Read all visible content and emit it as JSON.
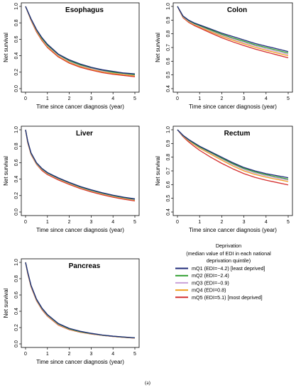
{
  "chart_data": [
    {
      "type": "line",
      "title": "Esophagus",
      "xlabel": "Time since cancer diagnosis (year)",
      "ylabel": "Net survival",
      "xlim": [
        0,
        5
      ],
      "ylim": [
        0,
        1
      ],
      "xticks": [
        "0",
        "1",
        "2",
        "3",
        "4",
        "5"
      ],
      "yticks": [
        "0.0",
        "0.2",
        "0.4",
        "0.6",
        "0.8",
        "1.0"
      ],
      "x": [
        0,
        0.25,
        0.5,
        0.75,
        1,
        1.5,
        2,
        2.5,
        3,
        3.5,
        4,
        4.5,
        5
      ],
      "series": [
        {
          "color": "#1f2a78",
          "values": [
            1.0,
            0.85,
            0.72,
            0.62,
            0.54,
            0.42,
            0.35,
            0.3,
            0.26,
            0.23,
            0.21,
            0.19,
            0.18
          ]
        },
        {
          "color": "#2e9e2e",
          "values": [
            1.0,
            0.845,
            0.715,
            0.61,
            0.53,
            0.415,
            0.34,
            0.29,
            0.255,
            0.225,
            0.2,
            0.185,
            0.17
          ]
        },
        {
          "color": "#c9a0d8",
          "values": [
            1.0,
            0.84,
            0.71,
            0.605,
            0.52,
            0.405,
            0.33,
            0.28,
            0.245,
            0.215,
            0.195,
            0.18,
            0.165
          ]
        },
        {
          "color": "#f0a020",
          "values": [
            1.0,
            0.835,
            0.7,
            0.595,
            0.51,
            0.395,
            0.32,
            0.27,
            0.235,
            0.205,
            0.185,
            0.17,
            0.155
          ]
        },
        {
          "color": "#d42f2f",
          "values": [
            1.0,
            0.83,
            0.69,
            0.585,
            0.5,
            0.385,
            0.31,
            0.26,
            0.225,
            0.195,
            0.175,
            0.16,
            0.145
          ]
        }
      ]
    },
    {
      "type": "line",
      "title": "Colon",
      "xlabel": "Time since cancer diagnosis (year)",
      "ylabel": "Net survival",
      "xlim": [
        0,
        5
      ],
      "ylim": [
        0.4,
        1
      ],
      "xticks": [
        "0",
        "1",
        "2",
        "3",
        "4",
        "5"
      ],
      "yticks": [
        "0.4",
        "0.5",
        "0.6",
        "0.7",
        "0.8",
        "0.9",
        "1.0"
      ],
      "x": [
        0,
        0.25,
        0.5,
        0.75,
        1,
        1.5,
        2,
        2.5,
        3,
        3.5,
        4,
        4.5,
        5
      ],
      "series": [
        {
          "color": "#1f2a78",
          "values": [
            1.0,
            0.93,
            0.9,
            0.88,
            0.865,
            0.835,
            0.805,
            0.78,
            0.755,
            0.73,
            0.71,
            0.69,
            0.67
          ]
        },
        {
          "color": "#2e9e2e",
          "values": [
            1.0,
            0.928,
            0.897,
            0.876,
            0.86,
            0.828,
            0.797,
            0.77,
            0.745,
            0.72,
            0.7,
            0.68,
            0.66
          ]
        },
        {
          "color": "#c9a0d8",
          "values": [
            1.0,
            0.925,
            0.893,
            0.872,
            0.855,
            0.822,
            0.79,
            0.762,
            0.736,
            0.712,
            0.69,
            0.67,
            0.65
          ]
        },
        {
          "color": "#f0a020",
          "values": [
            1.0,
            0.922,
            0.889,
            0.867,
            0.85,
            0.815,
            0.782,
            0.753,
            0.727,
            0.702,
            0.68,
            0.66,
            0.64
          ]
        },
        {
          "color": "#d42f2f",
          "values": [
            1.0,
            0.918,
            0.884,
            0.861,
            0.843,
            0.806,
            0.771,
            0.741,
            0.714,
            0.689,
            0.667,
            0.646,
            0.625
          ]
        }
      ]
    },
    {
      "type": "line",
      "title": "Liver",
      "xlabel": "Time since cancer diagnosis (year)",
      "ylabel": "Net survival",
      "xlim": [
        0,
        5
      ],
      "ylim": [
        0,
        1
      ],
      "xticks": [
        "0",
        "1",
        "2",
        "3",
        "4",
        "5"
      ],
      "yticks": [
        "0.0",
        "0.2",
        "0.4",
        "0.6",
        "0.8",
        "1.0"
      ],
      "x": [
        0,
        0.1,
        0.25,
        0.5,
        0.75,
        1,
        1.5,
        2,
        2.5,
        3,
        3.5,
        4,
        4.5,
        5
      ],
      "series": [
        {
          "color": "#1f2a78",
          "values": [
            1.0,
            0.86,
            0.72,
            0.6,
            0.53,
            0.48,
            0.415,
            0.36,
            0.31,
            0.27,
            0.235,
            0.205,
            0.18,
            0.16
          ]
        },
        {
          "color": "#2e9e2e",
          "values": [
            1.0,
            0.855,
            0.715,
            0.595,
            0.525,
            0.475,
            0.41,
            0.355,
            0.305,
            0.265,
            0.23,
            0.2,
            0.175,
            0.155
          ]
        },
        {
          "color": "#c9a0d8",
          "values": [
            1.0,
            0.85,
            0.71,
            0.59,
            0.52,
            0.47,
            0.405,
            0.35,
            0.3,
            0.26,
            0.225,
            0.195,
            0.17,
            0.15
          ]
        },
        {
          "color": "#f0a020",
          "values": [
            1.0,
            0.845,
            0.705,
            0.585,
            0.515,
            0.465,
            0.4,
            0.345,
            0.295,
            0.255,
            0.22,
            0.19,
            0.165,
            0.145
          ]
        },
        {
          "color": "#d42f2f",
          "values": [
            1.0,
            0.84,
            0.7,
            0.58,
            0.505,
            0.455,
            0.39,
            0.335,
            0.285,
            0.245,
            0.21,
            0.18,
            0.155,
            0.135
          ]
        }
      ]
    },
    {
      "type": "line",
      "title": "Rectum",
      "xlabel": "Time since cancer diagnosis (year)",
      "ylabel": "Net survival",
      "xlim": [
        0,
        5
      ],
      "ylim": [
        0.4,
        1
      ],
      "xticks": [
        "0",
        "1",
        "2",
        "3",
        "4",
        "5"
      ],
      "yticks": [
        "0.4",
        "0.5",
        "0.6",
        "0.7",
        "0.8",
        "0.9",
        "1.0"
      ],
      "x": [
        0,
        0.25,
        0.5,
        0.75,
        1,
        1.5,
        2,
        2.5,
        3,
        3.5,
        4,
        4.5,
        5
      ],
      "series": [
        {
          "color": "#1f2a78",
          "values": [
            1.0,
            0.96,
            0.93,
            0.905,
            0.88,
            0.84,
            0.8,
            0.76,
            0.725,
            0.7,
            0.68,
            0.665,
            0.65
          ]
        },
        {
          "color": "#2e9e2e",
          "values": [
            1.0,
            0.958,
            0.927,
            0.9,
            0.875,
            0.835,
            0.793,
            0.753,
            0.718,
            0.692,
            0.672,
            0.656,
            0.64
          ]
        },
        {
          "color": "#c9a0d8",
          "values": [
            1.0,
            0.956,
            0.924,
            0.897,
            0.872,
            0.83,
            0.787,
            0.746,
            0.71,
            0.684,
            0.664,
            0.648,
            0.632
          ]
        },
        {
          "color": "#f0a020",
          "values": [
            1.0,
            0.954,
            0.92,
            0.892,
            0.866,
            0.822,
            0.778,
            0.736,
            0.7,
            0.674,
            0.654,
            0.638,
            0.622
          ]
        },
        {
          "color": "#d42f2f",
          "values": [
            1.0,
            0.95,
            0.912,
            0.88,
            0.85,
            0.8,
            0.755,
            0.715,
            0.68,
            0.653,
            0.632,
            0.615,
            0.598
          ]
        }
      ]
    },
    {
      "type": "line",
      "title": "Pancreas",
      "xlabel": "Time since cancer diagnosis (year)",
      "ylabel": "Net survival",
      "xlim": [
        0,
        5
      ],
      "ylim": [
        0,
        1
      ],
      "xticks": [
        "0",
        "1",
        "2",
        "3",
        "4",
        "5"
      ],
      "yticks": [
        "0.0",
        "0.2",
        "0.4",
        "0.6",
        "0.8",
        "1.0"
      ],
      "x": [
        0,
        0.1,
        0.25,
        0.5,
        0.75,
        1,
        1.5,
        2,
        2.5,
        3,
        3.5,
        4,
        4.5,
        5
      ],
      "series": [
        {
          "color": "#1f2a78",
          "values": [
            1.0,
            0.88,
            0.72,
            0.55,
            0.44,
            0.36,
            0.25,
            0.19,
            0.155,
            0.13,
            0.11,
            0.095,
            0.085,
            0.075
          ]
        },
        {
          "color": "#2e9e2e",
          "values": [
            1.0,
            0.875,
            0.715,
            0.545,
            0.435,
            0.355,
            0.245,
            0.185,
            0.15,
            0.127,
            0.108,
            0.094,
            0.083,
            0.074
          ]
        },
        {
          "color": "#c9a0d8",
          "values": [
            1.0,
            0.87,
            0.71,
            0.54,
            0.43,
            0.35,
            0.24,
            0.182,
            0.148,
            0.125,
            0.106,
            0.092,
            0.082,
            0.073
          ]
        },
        {
          "color": "#f0a020",
          "values": [
            1.0,
            0.865,
            0.705,
            0.535,
            0.425,
            0.345,
            0.235,
            0.178,
            0.145,
            0.123,
            0.105,
            0.091,
            0.081,
            0.072
          ]
        },
        {
          "color": "#d42f2f",
          "values": [
            1.0,
            0.86,
            0.7,
            0.53,
            0.42,
            0.34,
            0.23,
            0.175,
            0.143,
            0.121,
            0.104,
            0.09,
            0.08,
            0.071
          ]
        }
      ]
    }
  ],
  "legend": {
    "title": "Deprivation",
    "subtitle_lines": [
      "(median value of EDI in each national",
      "deprivation quintile)"
    ],
    "items": [
      {
        "label": "mQ1 (EDI=−4.2) [least deprived]",
        "color": "#1f2a78"
      },
      {
        "label": "mQ2 (EDI=−2.4)",
        "color": "#2e9e2e"
      },
      {
        "label": "mQ3 (EDI=−0.9)",
        "color": "#c9a0d8"
      },
      {
        "label": "mQ4 (EDI=0.8)",
        "color": "#f0a020"
      },
      {
        "label": "mQ5 (EDI=5.1) [most deprived]",
        "color": "#d42f2f"
      }
    ]
  },
  "caption": "(a)"
}
